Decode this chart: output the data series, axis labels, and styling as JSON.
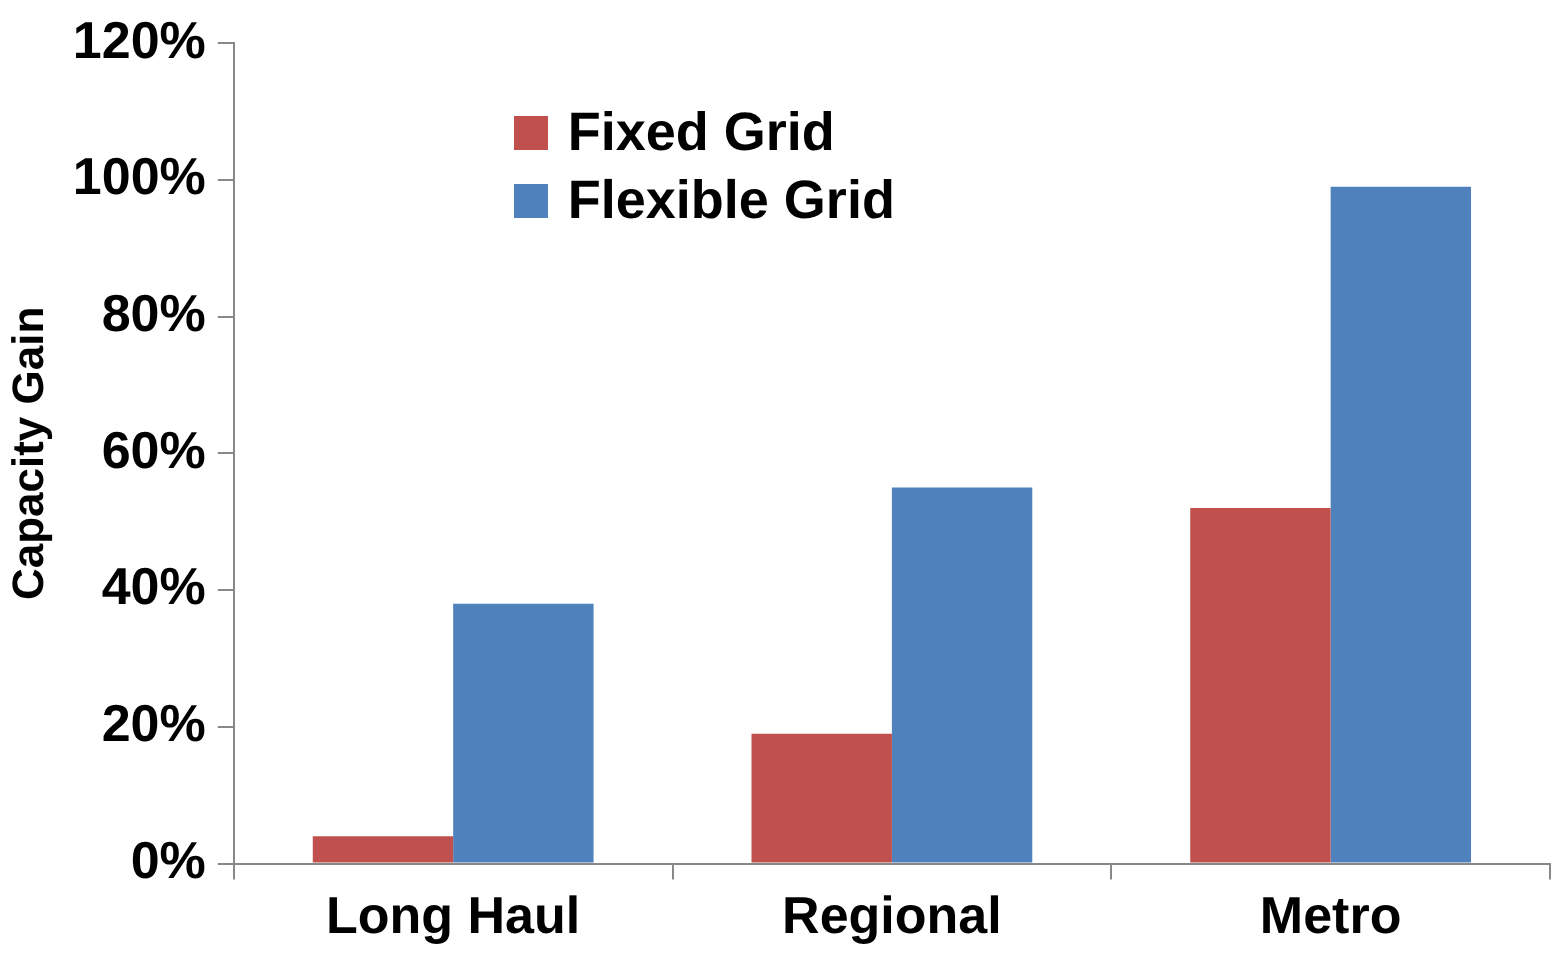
{
  "chart_data": {
    "type": "bar",
    "ylabel": "Capacity Gain",
    "categories": [
      "Long Haul",
      "Regional",
      "Metro"
    ],
    "series": [
      {
        "name": "Fixed Grid",
        "color": "#c0504d",
        "values": [
          4,
          19,
          52
        ]
      },
      {
        "name": "Flexible Grid",
        "color": "#4f81bd",
        "values": [
          38,
          55,
          99
        ]
      }
    ],
    "ylim": [
      0,
      120
    ],
    "yticks": [
      {
        "value": 0,
        "label": "0%"
      },
      {
        "value": 20,
        "label": "20%"
      },
      {
        "value": 40,
        "label": "40%"
      },
      {
        "value": 60,
        "label": "60%"
      },
      {
        "value": 80,
        "label": "80%"
      },
      {
        "value": 100,
        "label": "100%"
      },
      {
        "value": 120,
        "label": "120%"
      }
    ],
    "grid": false,
    "legend": "top left"
  }
}
